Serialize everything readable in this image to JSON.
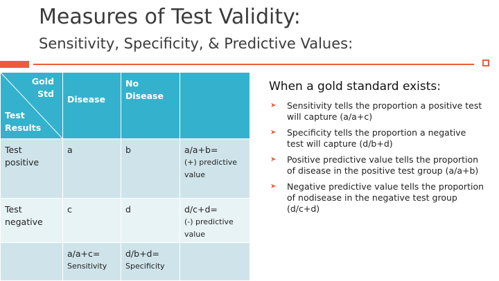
{
  "slide": {
    "title": "Measures of Test Validity:",
    "subtitle": "Sensitivity, Specificity, & Predictive Values:"
  },
  "table": {
    "header": {
      "corner_top": [
        "Gold",
        "Std"
      ],
      "corner_bottom": [
        "Test",
        "Results"
      ],
      "col_disease": "Disease",
      "col_no_disease": [
        "No",
        "Disease"
      ],
      "col_empty": ""
    },
    "rows": [
      {
        "label": [
          "Test",
          "positive"
        ],
        "disease": "a",
        "no_disease": "b",
        "formula": "a/a+b=",
        "formula_note": [
          "(+) predictive",
          "value"
        ]
      },
      {
        "label": [
          "Test",
          "negative"
        ],
        "disease": "c",
        "no_disease": "d",
        "formula": "d/c+d=",
        "formula_note": [
          "(-) predictive",
          "value"
        ]
      },
      {
        "label": [],
        "disease": "a/a+c=",
        "disease_note": "Sensitivity",
        "no_disease": "d/b+d=",
        "no_disease_note": "Specificity",
        "formula": "",
        "formula_note": []
      }
    ]
  },
  "panel": {
    "heading": "When a gold standard exists:",
    "bullet_icon": "chevron-right-icon",
    "bullets": [
      "Sensitivity tells the proportion a positive test will capture (a/a+c)",
      "Specificity tells the proportion a negative test will capture (d/b+d)",
      "Positive predictive value tells the proportion of disease in the positive test group (a/a+b)",
      "Negative predictive value tells the proportion of  nodisease in the negative test group (d/c+d)"
    ]
  },
  "colors": {
    "accent": "#f05a3a",
    "table_header": "#34b2cd",
    "table_row_dark": "#cfe4ea",
    "table_row_light": "#e8f3f6",
    "title_text": "#3b3b3b"
  }
}
